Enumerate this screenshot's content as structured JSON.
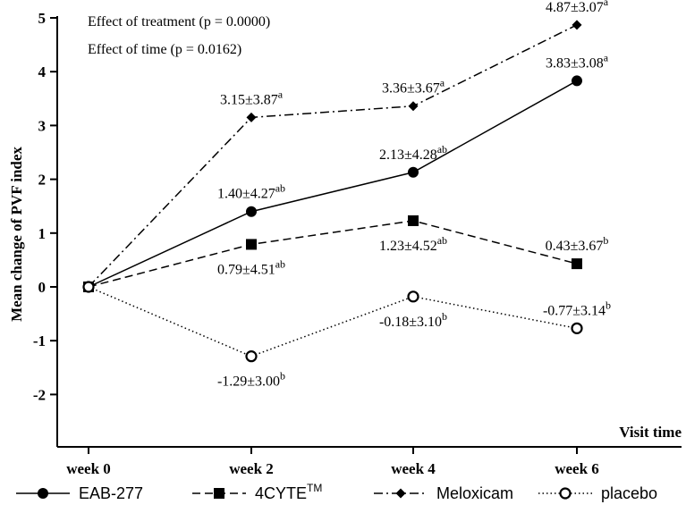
{
  "chart_data": {
    "type": "line",
    "title": "",
    "xlabel": "Visit time",
    "ylabel": "Mean change of PVF index",
    "categories": [
      "week 0",
      "week 2",
      "week 4",
      "week 6"
    ],
    "yticks": [
      -2,
      -1,
      0,
      1,
      2,
      3,
      4,
      5
    ],
    "ylim": [
      -3,
      5
    ],
    "annotations_text": [
      "Effect of treatment (p = 0.0000)",
      "Effect of time (p = 0.0162)"
    ],
    "series": [
      {
        "name": "EAB-277",
        "marker": "circle",
        "dash": "solid",
        "values": [
          0,
          1.4,
          2.13,
          3.83
        ],
        "labels": [
          null,
          {
            "main": "1.40±4.27",
            "sup": "ab",
            "pos": "above"
          },
          {
            "main": "2.13±4.28",
            "sup": "ab",
            "pos": "above"
          },
          {
            "main": "3.83±3.08",
            "sup": "a",
            "pos": "above"
          }
        ]
      },
      {
        "name": "4CYTE",
        "name_sup": "TM",
        "marker": "square",
        "dash": "dashed",
        "values": [
          0,
          0.79,
          1.23,
          0.43
        ],
        "labels": [
          null,
          {
            "main": "0.79±4.51",
            "sup": "ab",
            "pos": "below"
          },
          {
            "main": "1.23±4.52",
            "sup": "ab",
            "pos": "below"
          },
          {
            "main": "0.43±3.67",
            "sup": "b",
            "pos": "above"
          }
        ]
      },
      {
        "name": "Meloxicam",
        "marker": "diamond",
        "dash": "dashdot",
        "values": [
          0,
          3.15,
          3.36,
          4.87
        ],
        "labels": [
          null,
          {
            "main": "3.15±3.87",
            "sup": "a",
            "pos": "above"
          },
          {
            "main": "3.36±3.67",
            "sup": "a",
            "pos": "above"
          },
          {
            "main": "4.87±3.07",
            "sup": "a",
            "pos": "above"
          }
        ]
      },
      {
        "name": "placebo",
        "marker": "open-circle",
        "dash": "dotted",
        "values": [
          0,
          -1.29,
          -0.18,
          -0.77
        ],
        "labels": [
          null,
          {
            "main": "-1.29±3.00",
            "sup": "b",
            "pos": "below"
          },
          {
            "main": "-0.18±3.10",
            "sup": "b",
            "pos": "below"
          },
          {
            "main": "-0.77±3.14",
            "sup": "b",
            "pos": "above"
          }
        ]
      }
    ]
  }
}
